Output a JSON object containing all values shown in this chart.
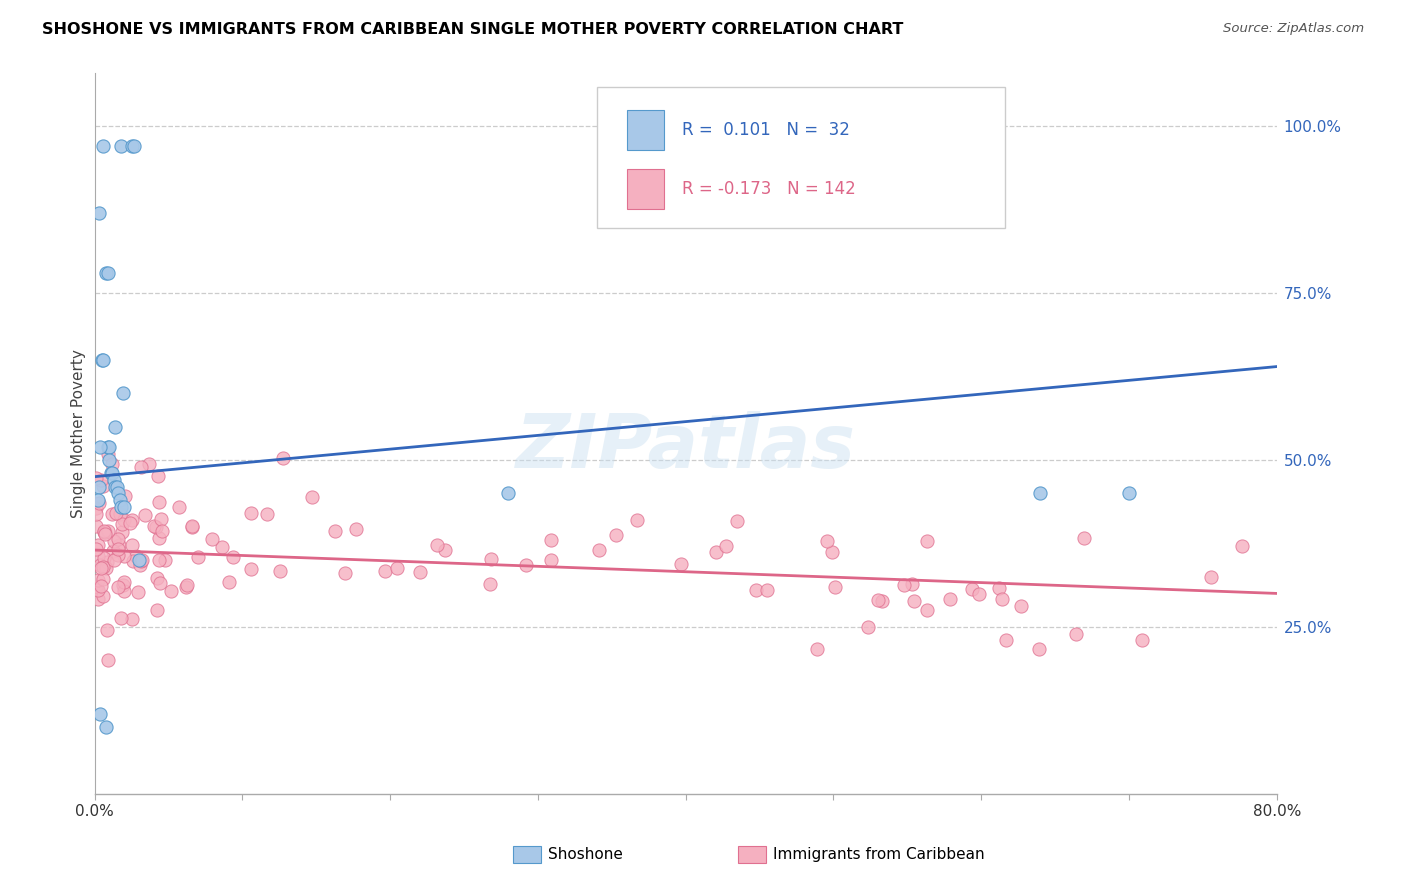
{
  "title": "SHOSHONE VS IMMIGRANTS FROM CARIBBEAN SINGLE MOTHER POVERTY CORRELATION CHART",
  "source": "Source: ZipAtlas.com",
  "ylabel": "Single Mother Poverty",
  "right_ytick_vals": [
    0.25,
    0.5,
    0.75,
    1.0
  ],
  "right_ytick_labels": [
    "25.0%",
    "50.0%",
    "75.0%",
    "100.0%"
  ],
  "shoshone_color": "#a8c8e8",
  "shoshone_edge": "#5599cc",
  "caribbean_color": "#f5b0c0",
  "caribbean_edge": "#e07090",
  "blue_line_color": "#3366bb",
  "pink_line_color": "#dd6688",
  "watermark": "ZIPatlas",
  "shoshone_line_x": [
    0.0,
    0.8
  ],
  "shoshone_line_y": [
    0.475,
    0.64
  ],
  "caribbean_line_x": [
    0.0,
    0.8
  ],
  "caribbean_line_y": [
    0.365,
    0.3
  ],
  "legend_text1": "R =  0.101   N =   32",
  "legend_text2": "R = -0.173   N = 142",
  "legend_color1": "#3366bb",
  "legend_color2": "#dd6688",
  "shoshone_pts_x": [
    0.006,
    0.018,
    0.025,
    0.027,
    0.003,
    0.008,
    0.009,
    0.005,
    0.006,
    0.019,
    0.014,
    0.009,
    0.01,
    0.01,
    0.011,
    0.012,
    0.013,
    0.014,
    0.015,
    0.016,
    0.017,
    0.28,
    0.004,
    0.008,
    0.03,
    0.018,
    0.02,
    0.64,
    0.7,
    0.004,
    0.003,
    0.002
  ],
  "shoshone_pts_y": [
    0.97,
    0.97,
    0.97,
    0.97,
    0.87,
    0.78,
    0.78,
    0.65,
    0.65,
    0.6,
    0.55,
    0.52,
    0.52,
    0.5,
    0.48,
    0.48,
    0.47,
    0.46,
    0.46,
    0.45,
    0.44,
    0.45,
    0.12,
    0.1,
    0.35,
    0.43,
    0.43,
    0.45,
    0.45,
    0.52,
    0.46,
    0.44
  ],
  "xlim_min": 0.0,
  "xlim_max": 0.8,
  "ylim_min": 0.0,
  "ylim_max": 1.08
}
